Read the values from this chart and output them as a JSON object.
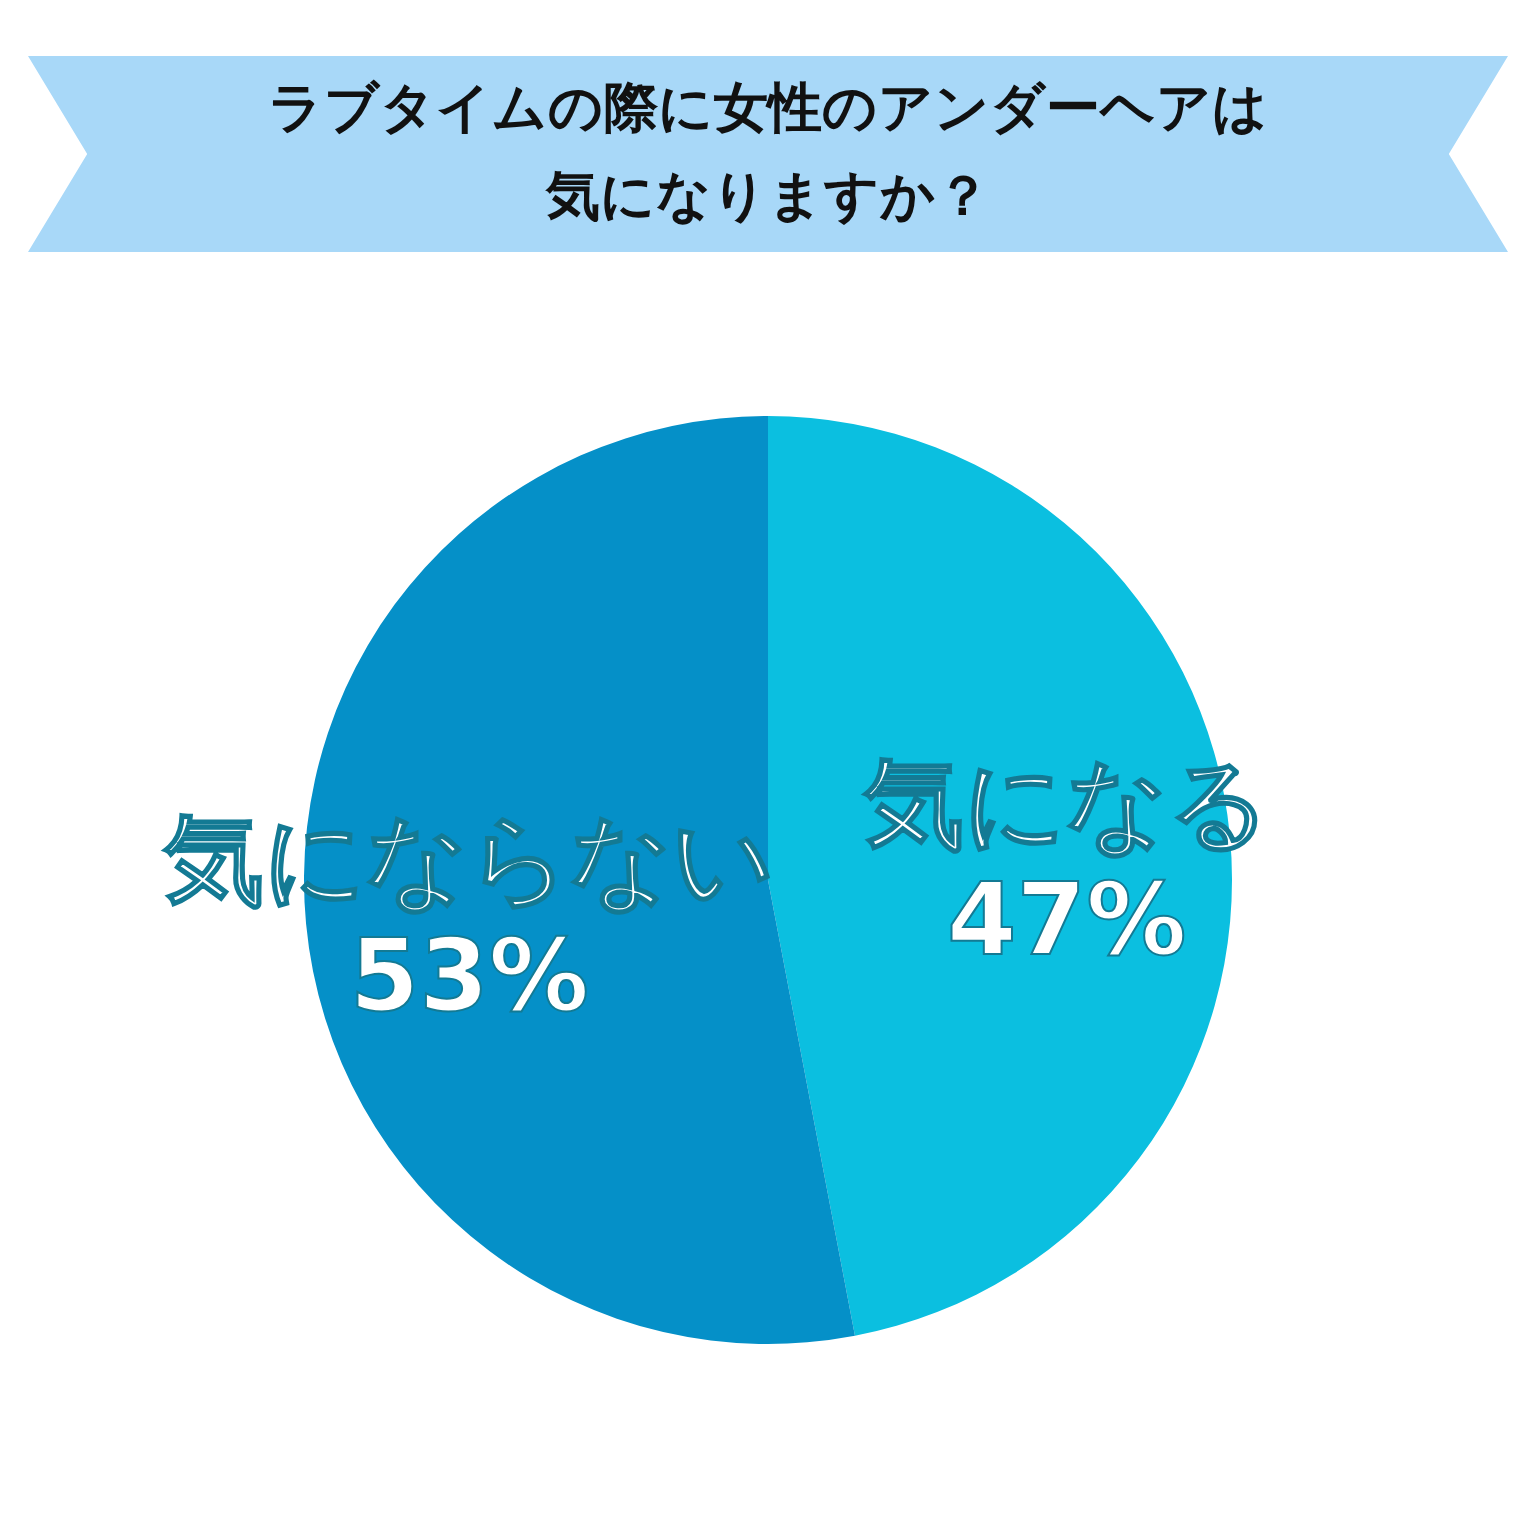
{
  "chart_data": {
    "type": "pie",
    "title": "ラブタイムの際に女性のアンダーヘアは気になりますか？",
    "categories": [
      "気になる",
      "気にならない"
    ],
    "values": [
      47,
      53
    ],
    "colors": [
      "#0bbfe0",
      "#0590c8"
    ],
    "value_labels": [
      "47%",
      "53%"
    ]
  }
}
